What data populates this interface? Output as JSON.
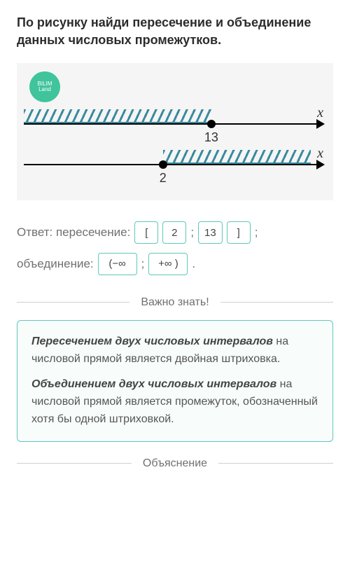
{
  "question": "По рисунку найди пересечение и объединение данных числовых промежутков.",
  "badge": {
    "line1": "BILIM",
    "line2": "Land"
  },
  "figure": {
    "axis_label": "x",
    "line1": {
      "point_value": "13",
      "point_pct": 62,
      "hatch_from_pct": 0,
      "hatch_to_pct": 62
    },
    "line2": {
      "point_value": "2",
      "point_pct": 46,
      "hatch_from_pct": 46,
      "hatch_to_pct": 95
    },
    "hatch_color": "#3a8a9e"
  },
  "answer": {
    "label_intersection": "Ответ: пересечение:",
    "label_union": "объединение:",
    "semicolon": ";",
    "period": ".",
    "slots": {
      "b_open": "[",
      "v1": "2",
      "v2": "13",
      "b_close": "]",
      "u1": "(−∞",
      "u2": "+∞ )"
    }
  },
  "important": {
    "title": "Важно знать!",
    "p1_em": "Пересечением двух числовых интервалов",
    "p1_rest": " на числовой прямой является двойная штриховка.",
    "p2_em": "Объединением двух числовых интервалов",
    "p2_rest": " на числовой прямой является промежуток, обозначенный хотя бы одной штриховкой."
  },
  "explanation_title": "Объяснение"
}
